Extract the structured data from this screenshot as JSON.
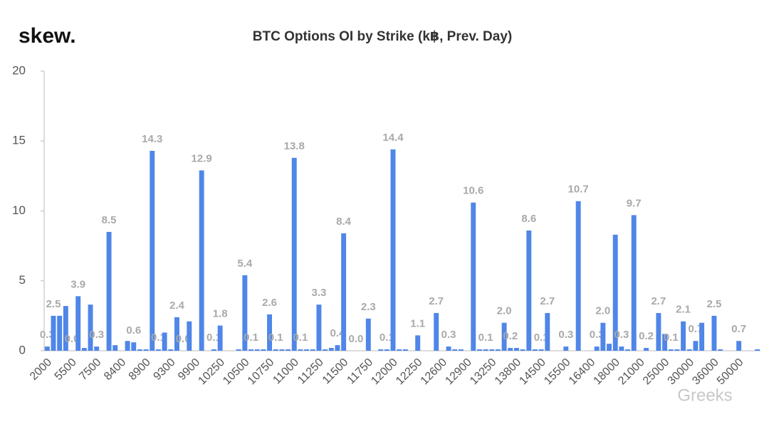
{
  "logo": "skew.",
  "watermark": "Greeks",
  "chart_data": {
    "type": "bar",
    "title": "BTC Options OI by Strike (k฿, Prev. Day)",
    "color": "#4f86e8",
    "grid": false,
    "ylim": [
      0,
      20
    ],
    "yticks": [
      0,
      5,
      10,
      15,
      20
    ],
    "categories": [
      "2000",
      null,
      null,
      null,
      "5500",
      null,
      null,
      null,
      "7500",
      null,
      null,
      null,
      "8400",
      null,
      null,
      null,
      "8900",
      null,
      null,
      null,
      "9300",
      null,
      null,
      null,
      "9900",
      null,
      null,
      null,
      "10250",
      null,
      null,
      null,
      "10500",
      null,
      null,
      null,
      "10750",
      null,
      null,
      null,
      "11000",
      null,
      null,
      null,
      "11250",
      null,
      null,
      null,
      "11500",
      null,
      null,
      null,
      "11750",
      null,
      null,
      null,
      "12000",
      null,
      null,
      null,
      "12250",
      null,
      null,
      null,
      "12600",
      null,
      null,
      null,
      "12900",
      null,
      null,
      null,
      "13250",
      null,
      null,
      null,
      "13800",
      null,
      null,
      null,
      "14500",
      null,
      null,
      null,
      "15500",
      null,
      null,
      null,
      "16400",
      null,
      null,
      null,
      "18000",
      null,
      null,
      null,
      "21000",
      null,
      null,
      null,
      "25000",
      null,
      null,
      null,
      "30000",
      null,
      null,
      null,
      "36000",
      null,
      null,
      null,
      "50000",
      null,
      null,
      null
    ],
    "values": [
      0.3,
      2.5,
      2.5,
      3.2,
      0,
      3.9,
      0.2,
      3.3,
      0.3,
      0,
      8.5,
      0.4,
      0,
      0.7,
      0.6,
      0.1,
      0.1,
      14.3,
      0.1,
      1.3,
      0.1,
      2.4,
      0,
      2.1,
      0,
      12.9,
      0,
      0.1,
      1.8,
      0,
      0,
      0.1,
      5.4,
      0.1,
      0.1,
      0.1,
      2.6,
      0.1,
      0.1,
      0.1,
      13.8,
      0.1,
      0.1,
      0.1,
      3.3,
      0.1,
      0.2,
      0.4,
      8.4,
      0,
      0,
      0,
      2.3,
      0,
      0.1,
      0.1,
      14.4,
      0.1,
      0.1,
      0,
      1.1,
      0,
      0,
      2.7,
      0,
      0.3,
      0.1,
      0.1,
      0,
      10.6,
      0.1,
      0.1,
      0.1,
      0.1,
      2.0,
      0.2,
      0.2,
      0.1,
      8.6,
      0.1,
      0.1,
      2.7,
      0,
      0,
      0.3,
      0,
      10.7,
      0,
      0,
      0.3,
      2.0,
      0.5,
      8.3,
      0.3,
      0.1,
      9.7,
      0,
      0.2,
      0,
      2.7,
      1.2,
      0.1,
      0.1,
      2.1,
      0.1,
      0.7,
      2.0,
      0,
      2.5,
      0.1,
      0,
      0,
      0.7,
      0,
      0,
      0.1
    ],
    "value_labels": [
      "0.3",
      "2.5",
      null,
      null,
      "0.0",
      "3.9",
      null,
      null,
      "0.3",
      null,
      "8.5",
      null,
      null,
      null,
      "0.6",
      null,
      null,
      "14.3",
      "0.1",
      null,
      null,
      "2.4",
      "0.0",
      null,
      null,
      "12.9",
      null,
      "0.1",
      "1.8",
      null,
      null,
      null,
      "5.4",
      "0.1",
      null,
      null,
      "2.6",
      "0.1",
      null,
      null,
      "13.8",
      "0.1",
      null,
      null,
      "3.3",
      null,
      null,
      "0.4",
      "8.4",
      null,
      "0.0",
      null,
      "2.3",
      null,
      null,
      "0.1",
      "14.4",
      null,
      null,
      null,
      "1.1",
      null,
      null,
      "2.7",
      null,
      "0.3",
      null,
      null,
      null,
      "10.6",
      null,
      "0.1",
      null,
      null,
      "2.0",
      "0.2",
      null,
      null,
      "8.6",
      null,
      "0.1",
      "2.7",
      null,
      null,
      "0.3",
      null,
      "10.7",
      null,
      null,
      "0.3",
      "2.0",
      null,
      null,
      "0.3",
      null,
      "9.7",
      null,
      "0.2",
      null,
      "2.7",
      null,
      "0.1",
      null,
      "2.1",
      null,
      "0.7",
      null,
      null,
      "2.5",
      null,
      null,
      null,
      "0.7",
      null,
      null,
      null
    ]
  }
}
